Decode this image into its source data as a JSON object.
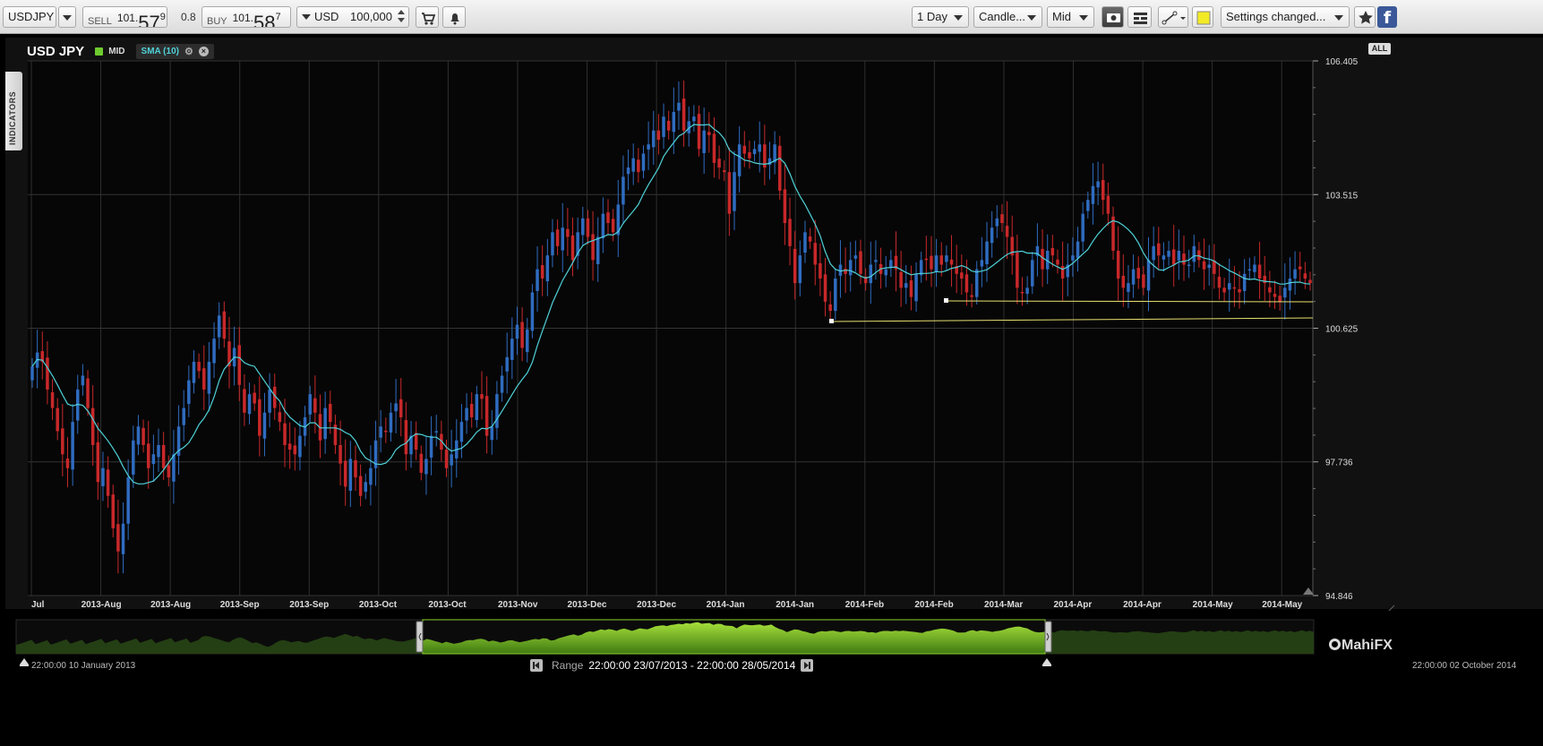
{
  "toolbar": {
    "symbol": "USDJPY",
    "sell": {
      "label": "SELL",
      "prefix": "101.",
      "big": "57",
      "sup": "9"
    },
    "spread": "0.8",
    "buy": {
      "label": "BUY",
      "prefix": "101.",
      "big": "58",
      "sup": "7"
    },
    "currency": "USD",
    "amount": "100,000",
    "trade_icon": "cart-icon",
    "alert_icon": "bell-icon",
    "timeframe": "1 Day",
    "chart_type": "Candle...",
    "price_basis": "Mid",
    "settings_status": "Settings changed...",
    "favorite_icon": "star-icon",
    "facebook_label": "f"
  },
  "chart": {
    "symbol": "USD JPY",
    "price_mode": "MID",
    "indicator": "SMA (10)",
    "indicators_tab": "INDICATORS",
    "all_button": "ALL",
    "colors": {
      "up": "#2f6cc0",
      "down": "#c8282a",
      "sma": "#4fd2d9",
      "trendline": "#e8e070"
    }
  },
  "chart_data": {
    "type": "candlestick",
    "ylim": [
      94.846,
      106.405
    ],
    "yticks": [
      106.405,
      103.515,
      100.625,
      97.736,
      94.846
    ],
    "xlabels": [
      "Jul",
      "2013-Aug",
      "2013-Aug",
      "2013-Sep",
      "2013-Sep",
      "2013-Oct",
      "2013-Oct",
      "2013-Nov",
      "2013-Dec",
      "2013-Dec",
      "2014-Jan",
      "2014-Jan",
      "2014-Feb",
      "2014-Feb",
      "2014-Mar",
      "2014-Apr",
      "2014-Apr",
      "2014-May",
      "2014-May"
    ],
    "closes": [
      99.8,
      100.1,
      99.9,
      99.3,
      98.9,
      98.4,
      97.9,
      97.6,
      98.6,
      99.3,
      99.6,
      98.9,
      98.1,
      97.3,
      97.6,
      97.0,
      96.3,
      95.8,
      96.4,
      97.4,
      98.2,
      98.5,
      98.1,
      97.6,
      97.9,
      98.1,
      97.6,
      97.4,
      97.9,
      98.5,
      98.9,
      99.5,
      99.9,
      99.7,
      99.3,
      99.9,
      100.4,
      100.9,
      100.4,
      99.8,
      100.2,
      99.4,
      98.8,
      99.2,
      99.0,
      98.3,
      98.8,
      99.3,
      98.9,
      98.6,
      98.1,
      98.0,
      97.9,
      98.3,
      98.7,
      99.2,
      98.8,
      98.2,
      98.9,
      98.6,
      98.1,
      97.7,
      97.2,
      97.8,
      97.4,
      97.0,
      97.3,
      97.6,
      98.2,
      98.5,
      98.4,
      98.8,
      99.0,
      98.7,
      97.9,
      98.3,
      98.0,
      97.5,
      97.8,
      98.3,
      98.4,
      98.0,
      97.6,
      97.9,
      98.2,
      98.6,
      98.9,
      98.7,
      99.2,
      99.1,
      98.3,
      98.5,
      99.2,
      99.6,
      100.0,
      100.4,
      100.7,
      100.2,
      100.6,
      101.4,
      101.9,
      101.7,
      102.2,
      102.7,
      102.4,
      102.8,
      102.6,
      102.1,
      102.7,
      103.0,
      102.6,
      102.1,
      102.6,
      103.1,
      102.9,
      102.7,
      103.3,
      103.9,
      104.1,
      104.3,
      104.0,
      104.4,
      104.6,
      104.9,
      104.7,
      105.2,
      104.9,
      105.3,
      105.5,
      104.9,
      105.1,
      105.2,
      104.5,
      104.9,
      104.8,
      104.2,
      104.1,
      104.0,
      103.1,
      104.0,
      104.6,
      104.4,
      104.3,
      104.5,
      104.6,
      104.1,
      104.3,
      104.6,
      103.6,
      102.9,
      102.4,
      101.6,
      102.2,
      102.7,
      102.5,
      102.0,
      101.7,
      101.2,
      101.0,
      101.7,
      102.0,
      101.8,
      102.1,
      102.2,
      101.8,
      101.6,
      102.0,
      102.1,
      101.8,
      101.9,
      102.1,
      101.9,
      101.5,
      101.6,
      101.3,
      101.8,
      102.1,
      102.1,
      101.9,
      102.2,
      102.0,
      102.2,
      102.0,
      101.8,
      101.7,
      101.4,
      101.3,
      101.9,
      102.1,
      102.5,
      102.8,
      103.0,
      102.9,
      102.6,
      102.2,
      101.5,
      101.4,
      101.5,
      102.1,
      102.4,
      101.9,
      102.3,
      102.2,
      102.0,
      101.7,
      102.0,
      102.2,
      102.5,
      103.1,
      103.4,
      103.7,
      103.8,
      103.4,
      103.1,
      102.3,
      101.7,
      101.5,
      101.6,
      101.9,
      101.7,
      101.5,
      102.1,
      102.4,
      102.2,
      102.2,
      102.3,
      102.0,
      102.3,
      102.0,
      102.0,
      102.4,
      102.1,
      101.9,
      102.0,
      101.8,
      101.5,
      101.4,
      101.6,
      101.5,
      101.4,
      101.8,
      101.9,
      102.0,
      101.7,
      101.6,
      101.4,
      101.3,
      101.2,
      101.5,
      101.7,
      101.9,
      101.9,
      101.7,
      101.6
    ]
  },
  "navigator": {
    "start_date": "22:00:00 10 January 2013",
    "end_date": "22:00:00 02 October 2014",
    "range_label": "Range",
    "range_value": "22:00:00 23/07/2013 - 22:00:00 28/05/2014",
    "brand": "MahiFX"
  }
}
